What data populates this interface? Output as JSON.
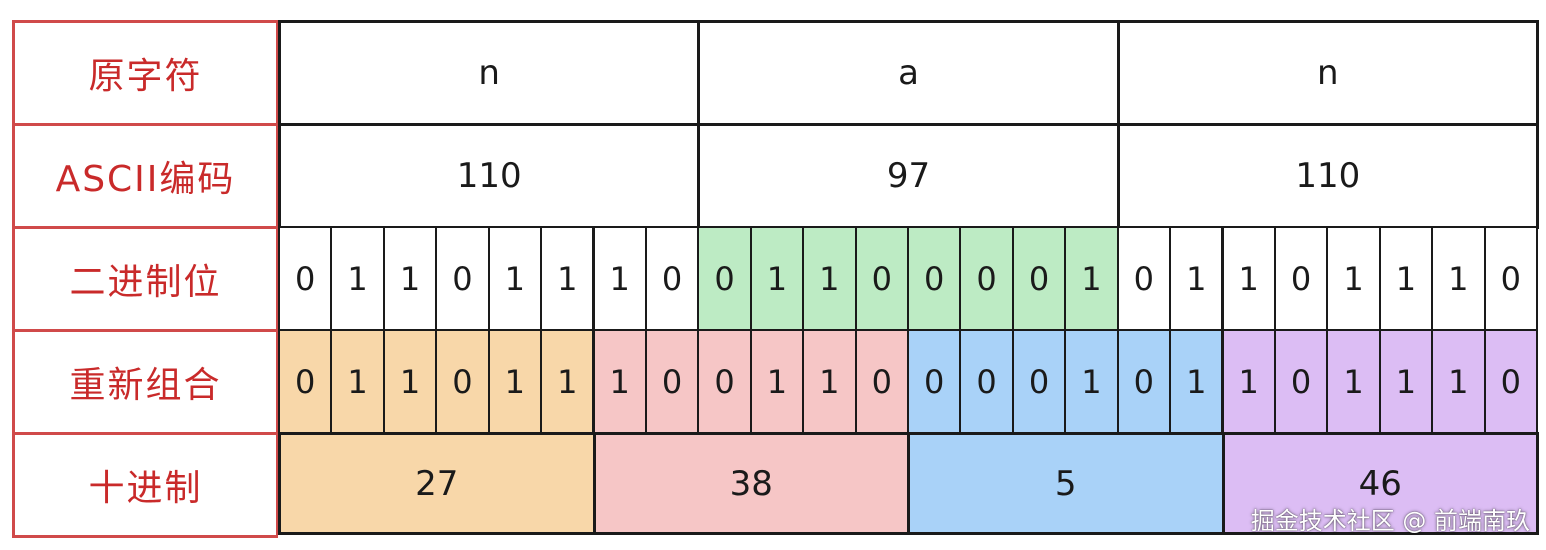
{
  "row_labels": {
    "original": "原字符",
    "ascii": "ASCII编码",
    "binary": "二进制位",
    "regroup": "重新组合",
    "decimal": "十进制"
  },
  "chars": [
    "n",
    "a",
    "n"
  ],
  "ascii_codes": [
    "110",
    "97",
    "110"
  ],
  "bits": [
    "0",
    "1",
    "1",
    "0",
    "1",
    "1",
    "1",
    "0",
    "0",
    "1",
    "1",
    "0",
    "0",
    "0",
    "0",
    "1",
    "0",
    "1",
    "1",
    "0",
    "1",
    "1",
    "1",
    "0"
  ],
  "groups": [
    {
      "bits": [
        "0",
        "1",
        "1",
        "0",
        "1",
        "1"
      ],
      "decimal": "27",
      "color": "#f8d7a9"
    },
    {
      "bits": [
        "1",
        "0",
        "0",
        "1",
        "1",
        "0"
      ],
      "decimal": "38",
      "color": "#f6c6c6"
    },
    {
      "bits": [
        "0",
        "0",
        "0",
        "1",
        "0",
        "1"
      ],
      "decimal": "5",
      "color": "#a9d2f8"
    },
    {
      "bits": [
        "1",
        "0",
        "1",
        "1",
        "1",
        "0"
      ],
      "decimal": "46",
      "color": "#dcbdf4"
    }
  ],
  "colors": {
    "label_text": "#c92a2a",
    "label_border": "#d04a4a",
    "cell_border": "#1a1a1a",
    "binary_highlight": "#bdebc4"
  },
  "watermark": "掘金技术社区 @ 前端南玖"
}
